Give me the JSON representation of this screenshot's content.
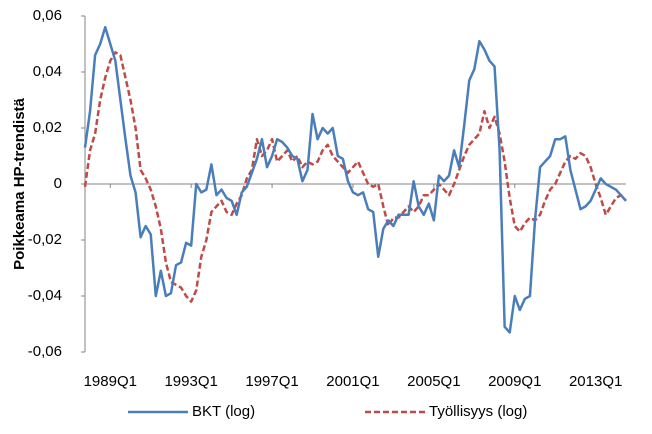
{
  "chart_data": {
    "type": "line",
    "y_label": "Poikkeama HP-trendistä",
    "categories": [
      null,
      null,
      null,
      null,
      null,
      "1989Q1",
      null,
      null,
      null,
      null,
      null,
      null,
      null,
      null,
      null,
      null,
      null,
      null,
      null,
      null,
      null,
      "1993Q1",
      null,
      null,
      null,
      null,
      null,
      null,
      null,
      null,
      null,
      null,
      null,
      null,
      null,
      null,
      null,
      "1997Q1",
      null,
      null,
      null,
      null,
      null,
      null,
      null,
      null,
      null,
      null,
      null,
      null,
      null,
      null,
      null,
      "2001Q1",
      null,
      null,
      null,
      null,
      null,
      null,
      null,
      null,
      null,
      null,
      null,
      null,
      null,
      null,
      null,
      "2005Q1",
      null,
      null,
      null,
      null,
      null,
      null,
      null,
      null,
      null,
      null,
      null,
      null,
      null,
      null,
      null,
      "2009Q1",
      null,
      null,
      null,
      null,
      null,
      null,
      null,
      null,
      null,
      null,
      null,
      null,
      null,
      null,
      null,
      "2013Q1",
      null,
      null,
      null,
      null,
      null,
      null
    ],
    "series": [
      {
        "name": "BKT (log)",
        "color": "#4a7ebb",
        "dash": false,
        "values": [
          0.013,
          0.026,
          0.046,
          0.05,
          0.056,
          0.05,
          0.044,
          0.03,
          0.016,
          0.003,
          -0.003,
          -0.019,
          -0.015,
          -0.018,
          -0.04,
          -0.031,
          -0.04,
          -0.039,
          -0.029,
          -0.028,
          -0.021,
          -0.022,
          0,
          -0.003,
          -0.002,
          0.007,
          -0.004,
          -0.002,
          -0.005,
          -0.006,
          -0.011,
          -0.003,
          -0.001,
          0.004,
          0.009,
          0.016,
          0.006,
          0.01,
          0.016,
          0.015,
          0.013,
          0.01,
          0.009,
          0.001,
          0.005,
          0.025,
          0.016,
          0.02,
          0.018,
          0.02,
          0.01,
          0.009,
          0.001,
          -0.003,
          -0.004,
          -0.003,
          -0.009,
          -0.01,
          -0.026,
          -0.016,
          -0.013,
          -0.015,
          -0.011,
          -0.011,
          -0.011,
          0.001,
          -0.008,
          -0.011,
          -0.007,
          -0.013,
          0.003,
          0.001,
          0.003,
          0.012,
          0.006,
          0.021,
          0.037,
          0.041,
          0.051,
          0.048,
          0.044,
          0.042,
          0.012,
          -0.051,
          -0.053,
          -0.04,
          -0.045,
          -0.041,
          -0.04,
          -0.013,
          0.006,
          0.008,
          0.01,
          0.016,
          0.016,
          0.017,
          0.005,
          -0.002,
          -0.009,
          -0.008,
          -0.006,
          -0.002,
          0.002,
          0,
          -0.001,
          -0.002,
          -0.004,
          -0.006
        ]
      },
      {
        "name": "Työllisyys (log)",
        "color": "#be4b48",
        "dash": true,
        "values": [
          -0.001,
          0.012,
          0.018,
          0.03,
          0.038,
          0.044,
          0.047,
          0.046,
          0.038,
          0.03,
          0.02,
          0.005,
          0.002,
          -0.002,
          -0.008,
          -0.016,
          -0.028,
          -0.035,
          -0.036,
          -0.037,
          -0.04,
          -0.042,
          -0.038,
          -0.026,
          -0.02,
          -0.01,
          -0.008,
          -0.006,
          -0.01,
          -0.011,
          -0.007,
          -0.004,
          0.002,
          0.005,
          0.016,
          0.01,
          0.012,
          0.016,
          0.008,
          0.01,
          0.012,
          0.008,
          0.01,
          0.006,
          0.008,
          0.007,
          0.008,
          0.012,
          0.014,
          0.01,
          0.008,
          0.006,
          0.004,
          0.006,
          0.008,
          0.004,
          0,
          -0.001,
          0,
          -0.008,
          -0.015,
          -0.012,
          -0.012,
          -0.01,
          -0.008,
          -0.01,
          -0.008,
          -0.004,
          -0.004,
          -0.002,
          0,
          -0.002,
          -0.004,
          0,
          0.005,
          0.01,
          0.014,
          0.016,
          0.018,
          0.026,
          0.02,
          0.024,
          0.018,
          0.008,
          -0.005,
          -0.015,
          -0.017,
          -0.014,
          -0.012,
          -0.013,
          -0.011,
          -0.006,
          -0.002,
          0,
          0.004,
          0.008,
          0.01,
          0.009,
          0.011,
          0.01,
          0.006,
          0,
          -0.005,
          -0.011,
          -0.008,
          -0.005,
          -0.004,
          -0.006
        ]
      }
    ],
    "ylim": [
      -0.06,
      0.06
    ],
    "yticks": [
      {
        "value": -0.06,
        "label": "-0,06"
      },
      {
        "value": -0.04,
        "label": "-0,04"
      },
      {
        "value": -0.02,
        "label": "-0,02"
      },
      0,
      {
        "value": 0.02,
        "label": "0,02"
      },
      {
        "value": 0.04,
        "label": "0,04"
      },
      {
        "value": 0.06,
        "label": "0,06"
      }
    ],
    "grid": false,
    "legend": "bottom"
  }
}
